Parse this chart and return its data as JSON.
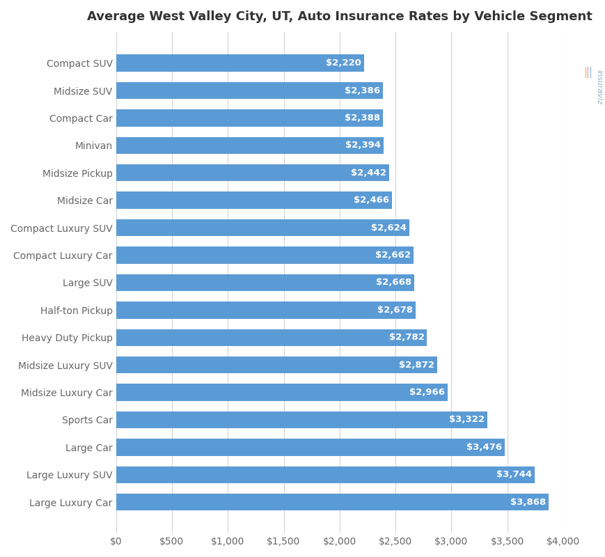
{
  "title": "Average West Valley City, UT, Auto Insurance Rates by Vehicle Segment",
  "categories": [
    "Compact SUV",
    "Midsize SUV",
    "Compact Car",
    "Minivan",
    "Midsize Pickup",
    "Midsize Car",
    "Compact Luxury SUV",
    "Compact Luxury Car",
    "Large SUV",
    "Half-ton Pickup",
    "Heavy Duty Pickup",
    "Midsize Luxury SUV",
    "Midsize Luxury Car",
    "Sports Car",
    "Large Car",
    "Large Luxury SUV",
    "Large Luxury Car"
  ],
  "values": [
    2220,
    2386,
    2388,
    2394,
    2442,
    2466,
    2624,
    2662,
    2668,
    2678,
    2782,
    2872,
    2966,
    3322,
    3476,
    3744,
    3868
  ],
  "bar_color": "#5b9bd5",
  "label_color": "#ffffff",
  "background_color": "#ffffff",
  "grid_color": "#d3d3d3",
  "title_fontsize": 13,
  "label_fontsize": 9.5,
  "tick_fontsize": 10,
  "xlim": [
    0,
    4000
  ],
  "xticks": [
    0,
    500,
    1000,
    1500,
    2000,
    2500,
    3000,
    3500,
    4000
  ],
  "xtick_labels": [
    "$0",
    "$500",
    "$1,000",
    "$1,500",
    "$2,000",
    "$2,500",
    "$3,000",
    "$3,500",
    "$4,000"
  ],
  "logo_colors": [
    "#f4a346",
    "#d988b8",
    "#7bafd4"
  ],
  "logo_text": "insuraviz"
}
